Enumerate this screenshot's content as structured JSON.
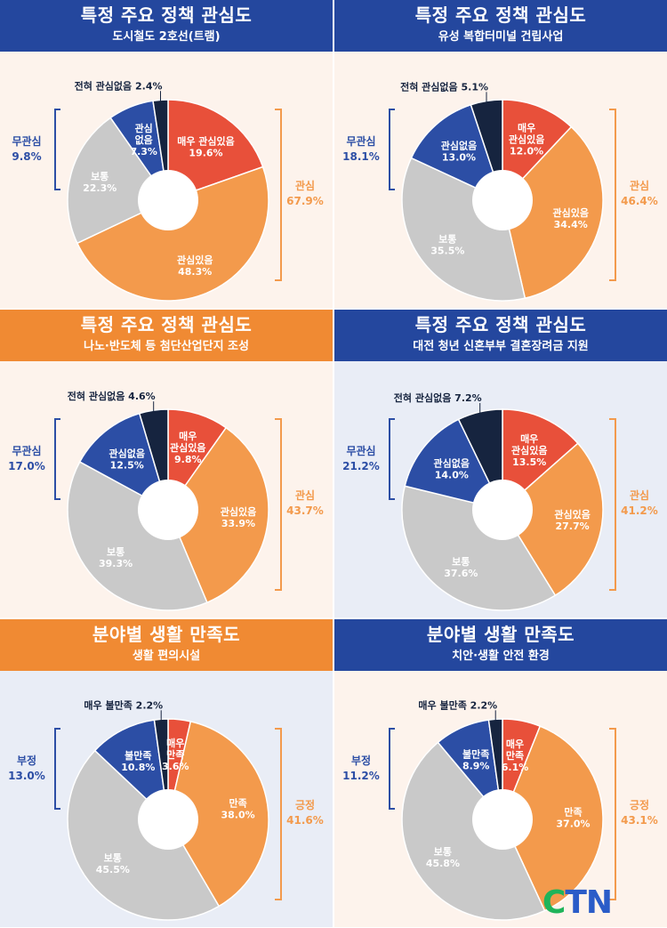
{
  "colors": {
    "blue_header": "#24479e",
    "orange_header": "#f08a33",
    "bg_cream": "#fdf3ec",
    "bg_lightblue": "#e9edf6",
    "very_interested": "#e8503a",
    "interested": "#f39a4c",
    "neutral": "#c9c9c9",
    "not_interested": "#2c4ea5",
    "not_at_all": "#16243f",
    "bracket_blue": "#2c4ea5",
    "bracket_orange": "#f39a4c",
    "inner_white": "#ffffff"
  },
  "logo": {
    "text_c": "C",
    "text_tn": "TN"
  },
  "chart_data": [
    {
      "type": "pie",
      "title": "특정 주요 정책 관심도",
      "subtitle": "도시철도 2호선(트램)",
      "slices": [
        {
          "label": "매우 관심있음",
          "value": 19.6,
          "display": "19.6%"
        },
        {
          "label": "관심있음",
          "value": 48.3,
          "display": "48.3%"
        },
        {
          "label": "보통",
          "value": 22.3,
          "display": "22.3%"
        },
        {
          "label": "관심 없음",
          "value": 7.3,
          "display": "7.3%"
        },
        {
          "label": "전혀 관심없음",
          "value": 2.4,
          "display": "2.4%"
        }
      ],
      "left_group": {
        "label": "무관심",
        "value": "9.8%"
      },
      "right_group": {
        "label": "관심",
        "value": "67.9%"
      }
    },
    {
      "type": "pie",
      "title": "특정 주요 정책 관심도",
      "subtitle": "유성 복합터미널 건립사업",
      "slices": [
        {
          "label": "매우 관심있음",
          "value": 12.0,
          "display": "12.0%"
        },
        {
          "label": "관심있음",
          "value": 34.4,
          "display": "34.4%"
        },
        {
          "label": "보통",
          "value": 35.5,
          "display": "35.5%"
        },
        {
          "label": "관심없음",
          "value": 13.0,
          "display": "13.0%"
        },
        {
          "label": "전혀 관심없음",
          "value": 5.1,
          "display": "5.1%"
        }
      ],
      "left_group": {
        "label": "무관심",
        "value": "18.1%"
      },
      "right_group": {
        "label": "관심",
        "value": "46.4%"
      }
    },
    {
      "type": "pie",
      "title": "특정 주요 정책 관심도",
      "subtitle": "나노·반도체 등 첨단산업단지 조성",
      "slices": [
        {
          "label": "매우 관심있음",
          "value": 9.8,
          "display": "9.8%"
        },
        {
          "label": "관심있음",
          "value": 33.9,
          "display": "33.9%"
        },
        {
          "label": "보통",
          "value": 39.3,
          "display": "39.3%"
        },
        {
          "label": "관심없음",
          "value": 12.5,
          "display": "12.5%"
        },
        {
          "label": "전혀 관심없음",
          "value": 4.6,
          "display": "4.6%"
        }
      ],
      "left_group": {
        "label": "무관심",
        "value": "17.0%"
      },
      "right_group": {
        "label": "관심",
        "value": "43.7%"
      }
    },
    {
      "type": "pie",
      "title": "특정 주요 정책 관심도",
      "subtitle": "대전 청년 신혼부부 결혼장려금 지원",
      "slices": [
        {
          "label": "매우 관심있음",
          "value": 13.5,
          "display": "13.5%"
        },
        {
          "label": "관심있음",
          "value": 27.7,
          "display": "27.7%"
        },
        {
          "label": "보통",
          "value": 37.6,
          "display": "37.6%"
        },
        {
          "label": "관심없음",
          "value": 14.0,
          "display": "14.0%"
        },
        {
          "label": "전혀 관심없음",
          "value": 7.2,
          "display": "7.2%"
        }
      ],
      "left_group": {
        "label": "무관심",
        "value": "21.2%"
      },
      "right_group": {
        "label": "관심",
        "value": "41.2%"
      }
    },
    {
      "type": "pie",
      "title": "분야별 생활 만족도",
      "subtitle": "생활 편의시설",
      "slices": [
        {
          "label": "매우 만족",
          "value": 3.6,
          "display": "3.6%"
        },
        {
          "label": "만족",
          "value": 38.0,
          "display": "38.0%"
        },
        {
          "label": "보통",
          "value": 45.5,
          "display": "45.5%"
        },
        {
          "label": "불만족",
          "value": 10.8,
          "display": "10.8%"
        },
        {
          "label": "매우 불만족",
          "value": 2.2,
          "display": "2.2%"
        }
      ],
      "left_group": {
        "label": "부정",
        "value": "13.0%"
      },
      "right_group": {
        "label": "긍정",
        "value": "41.6%"
      }
    },
    {
      "type": "pie",
      "title": "분야별 생활 만족도",
      "subtitle": "치안·생활 안전 환경",
      "slices": [
        {
          "label": "매우 만족",
          "value": 6.1,
          "display": "6.1%"
        },
        {
          "label": "만족",
          "value": 37.0,
          "display": "37.0%"
        },
        {
          "label": "보통",
          "value": 45.8,
          "display": "45.8%"
        },
        {
          "label": "불만족",
          "value": 8.9,
          "display": "8.9%"
        },
        {
          "label": "매우 불만족",
          "value": 2.2,
          "display": "2.2%"
        }
      ],
      "left_group": {
        "label": "부정",
        "value": "11.2%"
      },
      "right_group": {
        "label": "긍정",
        "value": "43.1%"
      }
    }
  ]
}
